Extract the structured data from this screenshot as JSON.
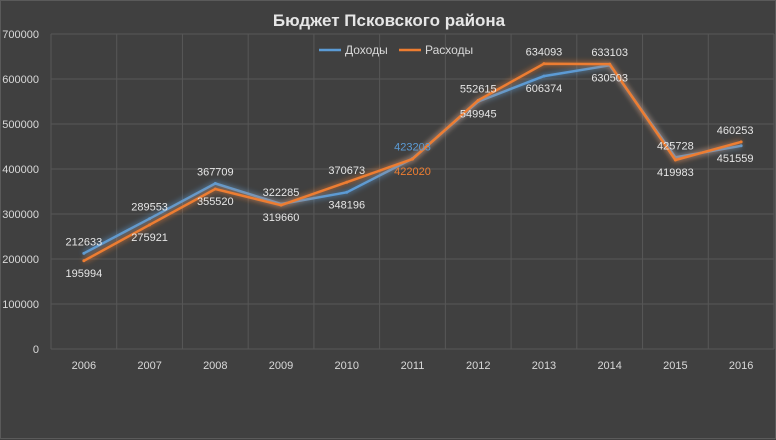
{
  "chart_data": {
    "type": "line",
    "title": "Бюджет Псковского района",
    "categories": [
      "2006",
      "2007",
      "2008",
      "2009",
      "2010",
      "2011",
      "2012",
      "2013",
      "2014",
      "2015",
      "2016"
    ],
    "series": [
      {
        "name": "Доходы",
        "color": "#5b9bd5",
        "values": [
          212633,
          289553,
          367709,
          322285,
          348196,
          423203,
          549945,
          606374,
          630503,
          425728,
          451559
        ]
      },
      {
        "name": "Расходы",
        "color": "#ed7d31",
        "values": [
          195994,
          275921,
          355520,
          319660,
          370673,
          422020,
          552615,
          634093,
          633103,
          419983,
          460253
        ]
      }
    ],
    "ylim": [
      0,
      700000
    ],
    "yticks": [
      "0",
      "100000",
      "200000",
      "300000",
      "400000",
      "500000",
      "600000",
      "700000"
    ],
    "grid": true,
    "legend_position": "top"
  }
}
